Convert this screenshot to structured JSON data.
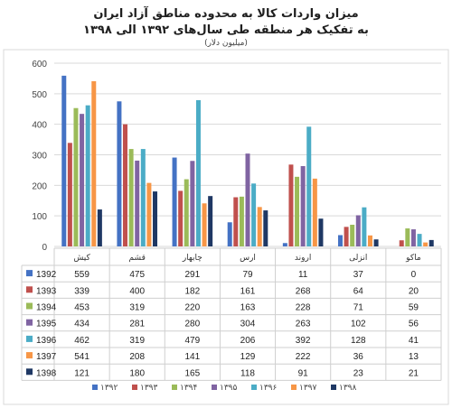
{
  "chart_data": {
    "type": "bar",
    "title": "میزان واردات کالا به محدوده مناطق آزاد ایران",
    "subtitle": "به تفکیک هر منطقه طی سال‌های ۱۳۹۲ الی ۱۳۹۸",
    "unit_label": "(میلیون دلار)",
    "categories": [
      "کیش",
      "قشم",
      "چابهار",
      "ارس",
      "اروند",
      "انزلی",
      "ماکو"
    ],
    "ylim": [
      0,
      600
    ],
    "yticks": [
      0,
      100,
      200,
      300,
      400,
      500,
      600
    ],
    "grid": true,
    "legend_position": "bottom",
    "series": [
      {
        "name": "1392",
        "legend_label": "۱۳۹۲",
        "color": "#4472c4",
        "values": [
          559,
          475,
          291,
          79,
          11,
          37,
          0
        ]
      },
      {
        "name": "1393",
        "legend_label": "۱۳۹۳",
        "color": "#c0504d",
        "values": [
          339,
          400,
          182,
          161,
          268,
          64,
          20
        ]
      },
      {
        "name": "1394",
        "legend_label": "۱۳۹۴",
        "color": "#9bbb59",
        "values": [
          453,
          319,
          220,
          163,
          228,
          71,
          59
        ]
      },
      {
        "name": "1395",
        "legend_label": "۱۳۹۵",
        "color": "#8064a2",
        "values": [
          434,
          281,
          280,
          304,
          263,
          102,
          56
        ]
      },
      {
        "name": "1396",
        "legend_label": "۱۳۹۶",
        "color": "#4bacc6",
        "values": [
          462,
          319,
          479,
          206,
          392,
          128,
          41
        ]
      },
      {
        "name": "1397",
        "legend_label": "۱۳۹۷",
        "color": "#f79646",
        "values": [
          541,
          208,
          141,
          129,
          222,
          36,
          13
        ]
      },
      {
        "name": "1398",
        "legend_label": "۱۳۹۸",
        "color": "#1f3864",
        "values": [
          121,
          180,
          165,
          118,
          91,
          23,
          21
        ]
      }
    ]
  }
}
